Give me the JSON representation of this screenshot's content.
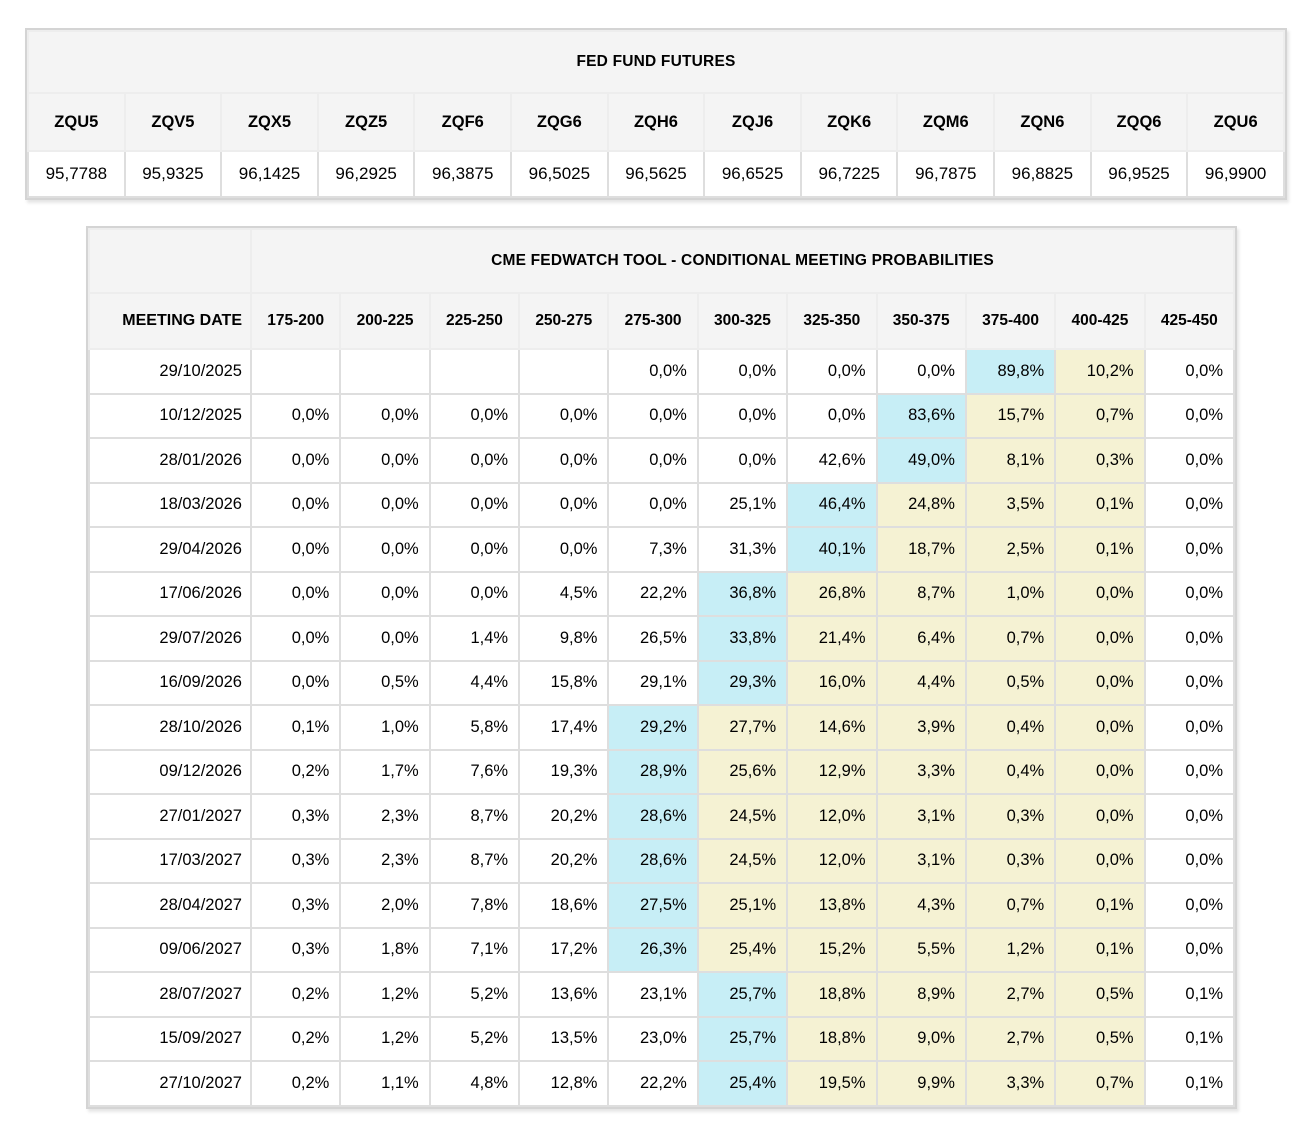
{
  "colors": {
    "highlight_blue": "#c7eef6",
    "highlight_yellow": "#f5f2d3",
    "header_bg": "#f4f4f4",
    "grid_border": "#dedede",
    "outer_border": "#d4d4d4"
  },
  "futures_table": {
    "title": "FED FUND FUTURES",
    "contracts": [
      "ZQU5",
      "ZQV5",
      "ZQX5",
      "ZQZ5",
      "ZQF6",
      "ZQG6",
      "ZQH6",
      "ZQJ6",
      "ZQK6",
      "ZQM6",
      "ZQN6",
      "ZQQ6",
      "ZQU6"
    ],
    "prices": [
      "95,7788",
      "95,9325",
      "96,1425",
      "96,2925",
      "96,3875",
      "96,5025",
      "96,5625",
      "96,6525",
      "96,7225",
      "96,7875",
      "96,8825",
      "96,9525",
      "96,9900"
    ]
  },
  "fedwatch_table": {
    "title": "CME FEDWATCH TOOL - CONDITIONAL MEETING PROBABILITIES",
    "date_column_header": "MEETING DATE",
    "rate_range_headers": [
      "175-200",
      "200-225",
      "225-250",
      "250-275",
      "275-300",
      "300-325",
      "325-350",
      "350-375",
      "375-400",
      "400-425",
      "425-450"
    ],
    "rows": [
      {
        "date": "29/10/2025",
        "values": [
          "",
          "",
          "",
          "",
          "0,0%",
          "0,0%",
          "0,0%",
          "0,0%",
          "89,8%",
          "10,2%",
          "0,0%"
        ],
        "highlights": [
          "",
          "",
          "",
          "",
          "",
          "",
          "",
          "",
          "blue",
          "yellow",
          ""
        ]
      },
      {
        "date": "10/12/2025",
        "values": [
          "0,0%",
          "0,0%",
          "0,0%",
          "0,0%",
          "0,0%",
          "0,0%",
          "0,0%",
          "83,6%",
          "15,7%",
          "0,7%",
          "0,0%"
        ],
        "highlights": [
          "",
          "",
          "",
          "",
          "",
          "",
          "",
          "blue",
          "yellow",
          "yellow",
          ""
        ]
      },
      {
        "date": "28/01/2026",
        "values": [
          "0,0%",
          "0,0%",
          "0,0%",
          "0,0%",
          "0,0%",
          "0,0%",
          "42,6%",
          "49,0%",
          "8,1%",
          "0,3%",
          "0,0%"
        ],
        "highlights": [
          "",
          "",
          "",
          "",
          "",
          "",
          "",
          "blue",
          "yellow",
          "yellow",
          ""
        ]
      },
      {
        "date": "18/03/2026",
        "values": [
          "0,0%",
          "0,0%",
          "0,0%",
          "0,0%",
          "0,0%",
          "25,1%",
          "46,4%",
          "24,8%",
          "3,5%",
          "0,1%",
          "0,0%"
        ],
        "highlights": [
          "",
          "",
          "",
          "",
          "",
          "",
          "blue",
          "yellow",
          "yellow",
          "yellow",
          ""
        ]
      },
      {
        "date": "29/04/2026",
        "values": [
          "0,0%",
          "0,0%",
          "0,0%",
          "0,0%",
          "7,3%",
          "31,3%",
          "40,1%",
          "18,7%",
          "2,5%",
          "0,1%",
          "0,0%"
        ],
        "highlights": [
          "",
          "",
          "",
          "",
          "",
          "",
          "blue",
          "yellow",
          "yellow",
          "yellow",
          ""
        ]
      },
      {
        "date": "17/06/2026",
        "values": [
          "0,0%",
          "0,0%",
          "0,0%",
          "4,5%",
          "22,2%",
          "36,8%",
          "26,8%",
          "8,7%",
          "1,0%",
          "0,0%",
          "0,0%"
        ],
        "highlights": [
          "",
          "",
          "",
          "",
          "",
          "blue",
          "yellow",
          "yellow",
          "yellow",
          "yellow",
          ""
        ]
      },
      {
        "date": "29/07/2026",
        "values": [
          "0,0%",
          "0,0%",
          "1,4%",
          "9,8%",
          "26,5%",
          "33,8%",
          "21,4%",
          "6,4%",
          "0,7%",
          "0,0%",
          "0,0%"
        ],
        "highlights": [
          "",
          "",
          "",
          "",
          "",
          "blue",
          "yellow",
          "yellow",
          "yellow",
          "yellow",
          ""
        ]
      },
      {
        "date": "16/09/2026",
        "values": [
          "0,0%",
          "0,5%",
          "4,4%",
          "15,8%",
          "29,1%",
          "29,3%",
          "16,0%",
          "4,4%",
          "0,5%",
          "0,0%",
          "0,0%"
        ],
        "highlights": [
          "",
          "",
          "",
          "",
          "",
          "blue",
          "yellow",
          "yellow",
          "yellow",
          "yellow",
          ""
        ]
      },
      {
        "date": "28/10/2026",
        "values": [
          "0,1%",
          "1,0%",
          "5,8%",
          "17,4%",
          "29,2%",
          "27,7%",
          "14,6%",
          "3,9%",
          "0,4%",
          "0,0%",
          "0,0%"
        ],
        "highlights": [
          "",
          "",
          "",
          "",
          "blue",
          "yellow",
          "yellow",
          "yellow",
          "yellow",
          "yellow",
          ""
        ]
      },
      {
        "date": "09/12/2026",
        "values": [
          "0,2%",
          "1,7%",
          "7,6%",
          "19,3%",
          "28,9%",
          "25,6%",
          "12,9%",
          "3,3%",
          "0,4%",
          "0,0%",
          "0,0%"
        ],
        "highlights": [
          "",
          "",
          "",
          "",
          "blue",
          "yellow",
          "yellow",
          "yellow",
          "yellow",
          "yellow",
          ""
        ]
      },
      {
        "date": "27/01/2027",
        "values": [
          "0,3%",
          "2,3%",
          "8,7%",
          "20,2%",
          "28,6%",
          "24,5%",
          "12,0%",
          "3,1%",
          "0,3%",
          "0,0%",
          "0,0%"
        ],
        "highlights": [
          "",
          "",
          "",
          "",
          "blue",
          "yellow",
          "yellow",
          "yellow",
          "yellow",
          "yellow",
          ""
        ]
      },
      {
        "date": "17/03/2027",
        "values": [
          "0,3%",
          "2,3%",
          "8,7%",
          "20,2%",
          "28,6%",
          "24,5%",
          "12,0%",
          "3,1%",
          "0,3%",
          "0,0%",
          "0,0%"
        ],
        "highlights": [
          "",
          "",
          "",
          "",
          "blue",
          "yellow",
          "yellow",
          "yellow",
          "yellow",
          "yellow",
          ""
        ]
      },
      {
        "date": "28/04/2027",
        "values": [
          "0,3%",
          "2,0%",
          "7,8%",
          "18,6%",
          "27,5%",
          "25,1%",
          "13,8%",
          "4,3%",
          "0,7%",
          "0,1%",
          "0,0%"
        ],
        "highlights": [
          "",
          "",
          "",
          "",
          "blue",
          "yellow",
          "yellow",
          "yellow",
          "yellow",
          "yellow",
          ""
        ]
      },
      {
        "date": "09/06/2027",
        "values": [
          "0,3%",
          "1,8%",
          "7,1%",
          "17,2%",
          "26,3%",
          "25,4%",
          "15,2%",
          "5,5%",
          "1,2%",
          "0,1%",
          "0,0%"
        ],
        "highlights": [
          "",
          "",
          "",
          "",
          "blue",
          "yellow",
          "yellow",
          "yellow",
          "yellow",
          "yellow",
          ""
        ]
      },
      {
        "date": "28/07/2027",
        "values": [
          "0,2%",
          "1,2%",
          "5,2%",
          "13,6%",
          "23,1%",
          "25,7%",
          "18,8%",
          "8,9%",
          "2,7%",
          "0,5%",
          "0,1%"
        ],
        "highlights": [
          "",
          "",
          "",
          "",
          "",
          "blue",
          "yellow",
          "yellow",
          "yellow",
          "yellow",
          ""
        ]
      },
      {
        "date": "15/09/2027",
        "values": [
          "0,2%",
          "1,2%",
          "5,2%",
          "13,5%",
          "23,0%",
          "25,7%",
          "18,8%",
          "9,0%",
          "2,7%",
          "0,5%",
          "0,1%"
        ],
        "highlights": [
          "",
          "",
          "",
          "",
          "",
          "blue",
          "yellow",
          "yellow",
          "yellow",
          "yellow",
          ""
        ]
      },
      {
        "date": "27/10/2027",
        "values": [
          "0,2%",
          "1,1%",
          "4,8%",
          "12,8%",
          "22,2%",
          "25,4%",
          "19,5%",
          "9,9%",
          "3,3%",
          "0,7%",
          "0,1%"
        ],
        "highlights": [
          "",
          "",
          "",
          "",
          "",
          "blue",
          "yellow",
          "yellow",
          "yellow",
          "yellow",
          ""
        ]
      }
    ]
  }
}
